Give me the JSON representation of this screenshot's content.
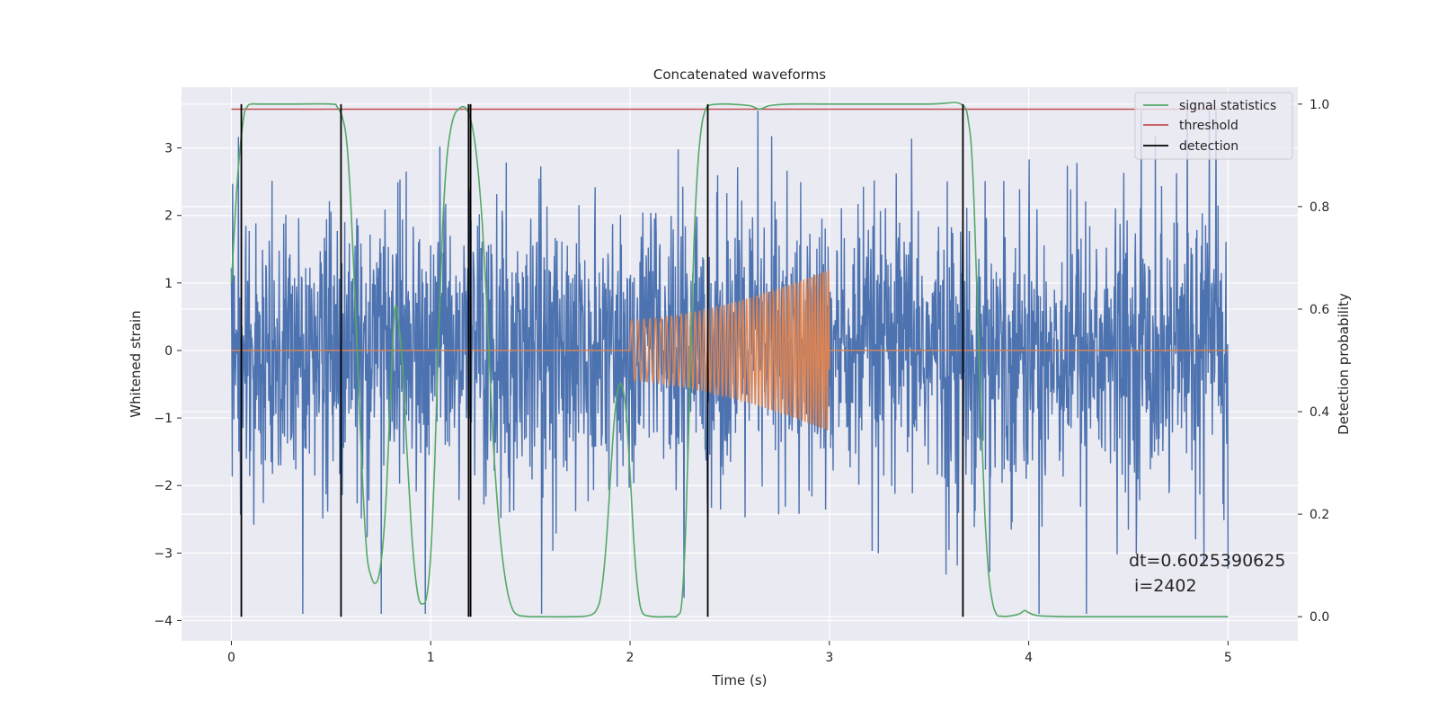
{
  "chart_data": {
    "type": "line",
    "title": "Concatenated waveforms",
    "xlabel": "Time (s)",
    "ylabel": "Whitened strain",
    "y2label": "Detection probability",
    "xlim": [
      -0.25,
      5.35
    ],
    "ylim": [
      -4.3,
      3.9
    ],
    "y2lim": [
      -0.047,
      1.033
    ],
    "xticks": [
      0,
      1,
      2,
      3,
      4,
      5
    ],
    "yticks": [
      -4,
      -3,
      -2,
      -1,
      0,
      1,
      2,
      3
    ],
    "y2ticks": [
      0.0,
      0.2,
      0.4,
      0.6,
      0.8,
      1.0
    ],
    "grid": true,
    "legend_position": "top-right",
    "colors": {
      "background": "#eaeaf2",
      "noise": "#4c72b0",
      "injection": "#dd8452",
      "signal_statistics": "#55a868",
      "threshold": "#c44e52",
      "detection": "#000000"
    },
    "series": [
      {
        "name": "noise",
        "x_range": [
          0,
          5
        ],
        "approx_amplitude_range": [
          -3.9,
          3.55
        ]
      },
      {
        "name": "injected signal",
        "x_range": [
          2.0,
          3.0
        ],
        "envelope_start": 0.45,
        "envelope_end": 1.2
      },
      {
        "name": "signal statistics",
        "x": [
          0.0,
          0.03,
          0.06,
          0.08,
          0.1,
          0.15,
          0.3,
          0.5,
          0.53,
          0.56,
          0.58,
          0.6,
          0.62,
          0.64,
          0.66,
          0.68,
          0.7,
          0.72,
          0.74,
          0.76,
          0.78,
          0.8,
          0.82,
          0.84,
          0.86,
          0.88,
          0.9,
          0.92,
          0.94,
          0.96,
          0.98,
          1.0,
          1.02,
          1.04,
          1.06,
          1.08,
          1.1,
          1.12,
          1.14,
          1.16,
          1.18,
          1.2,
          1.22,
          1.24,
          1.26,
          1.28,
          1.3,
          1.32,
          1.35,
          1.38,
          1.41,
          1.44,
          1.47,
          1.5,
          1.55,
          1.7,
          1.8,
          1.84,
          1.86,
          1.88,
          1.9,
          1.92,
          1.94,
          1.96,
          1.98,
          2.0,
          2.02,
          2.04,
          2.06,
          2.1,
          2.2,
          2.24,
          2.26,
          2.28,
          2.3,
          2.32,
          2.34,
          2.36,
          2.38,
          2.4,
          2.45,
          2.5,
          2.6,
          2.65,
          2.7,
          2.8,
          3.0,
          3.5,
          3.66,
          3.7,
          3.72,
          3.74,
          3.76,
          3.78,
          3.8,
          3.82,
          3.84,
          3.86,
          3.9,
          3.95,
          3.98,
          4.0,
          4.05,
          4.2,
          4.5,
          5.0
        ],
        "values": [
          0.65,
          0.85,
          0.97,
          0.995,
          1.0,
          1.0,
          1.0,
          1.0,
          0.995,
          0.97,
          0.92,
          0.8,
          0.62,
          0.43,
          0.25,
          0.12,
          0.08,
          0.065,
          0.08,
          0.14,
          0.26,
          0.45,
          0.6,
          0.57,
          0.48,
          0.33,
          0.19,
          0.09,
          0.035,
          0.025,
          0.04,
          0.12,
          0.3,
          0.55,
          0.76,
          0.89,
          0.95,
          0.98,
          0.99,
          0.995,
          0.99,
          0.97,
          0.93,
          0.86,
          0.76,
          0.62,
          0.45,
          0.3,
          0.15,
          0.06,
          0.015,
          0.003,
          0.001,
          0.0,
          0.0,
          0.0,
          0.003,
          0.02,
          0.06,
          0.14,
          0.26,
          0.38,
          0.445,
          0.45,
          0.4,
          0.28,
          0.14,
          0.05,
          0.01,
          0.001,
          0.0,
          0.003,
          0.03,
          0.18,
          0.45,
          0.72,
          0.88,
          0.96,
          0.99,
          0.998,
          1.0,
          1.0,
          0.997,
          0.99,
          0.997,
          1.0,
          1.0,
          1.0,
          1.0,
          0.96,
          0.86,
          0.64,
          0.4,
          0.2,
          0.08,
          0.025,
          0.004,
          0.001,
          0.001,
          0.005,
          0.012,
          0.008,
          0.002,
          0.0,
          0.0,
          0.0
        ]
      },
      {
        "name": "threshold",
        "x": [
          0,
          5
        ],
        "values": [
          0.99,
          0.99
        ]
      },
      {
        "name": "detection",
        "x": [
          0.05,
          0.55,
          1.19,
          1.2,
          2.39,
          3.67
        ],
        "y_extent": [
          0.0,
          1.0
        ]
      }
    ],
    "legend": [
      {
        "label": "signal statistics",
        "color_key": "signal_statistics"
      },
      {
        "label": "threshold",
        "color_key": "threshold"
      },
      {
        "label": "detection",
        "color_key": "detection"
      }
    ],
    "annotation": {
      "line1": "dt=0.6025390625",
      "line2": " i=2402"
    }
  }
}
